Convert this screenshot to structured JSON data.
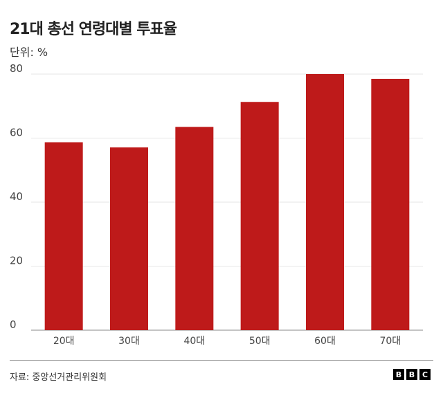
{
  "chart_data": {
    "type": "bar",
    "title": "21대 총선 연령대별 투표율",
    "subtitle": "단위: %",
    "categories": [
      "20대",
      "30대",
      "40대",
      "50대",
      "60대",
      "70대"
    ],
    "values": [
      58.7,
      57.1,
      63.5,
      71.3,
      80.0,
      78.5
    ],
    "ylim": [
      0,
      80
    ],
    "yticks": [
      0,
      20,
      40,
      60,
      80
    ],
    "grid": true,
    "bar_color": "#be1a1a"
  },
  "footer": {
    "source": "자료: 중앙선거관리위원회",
    "logo": [
      "B",
      "B",
      "C"
    ]
  }
}
